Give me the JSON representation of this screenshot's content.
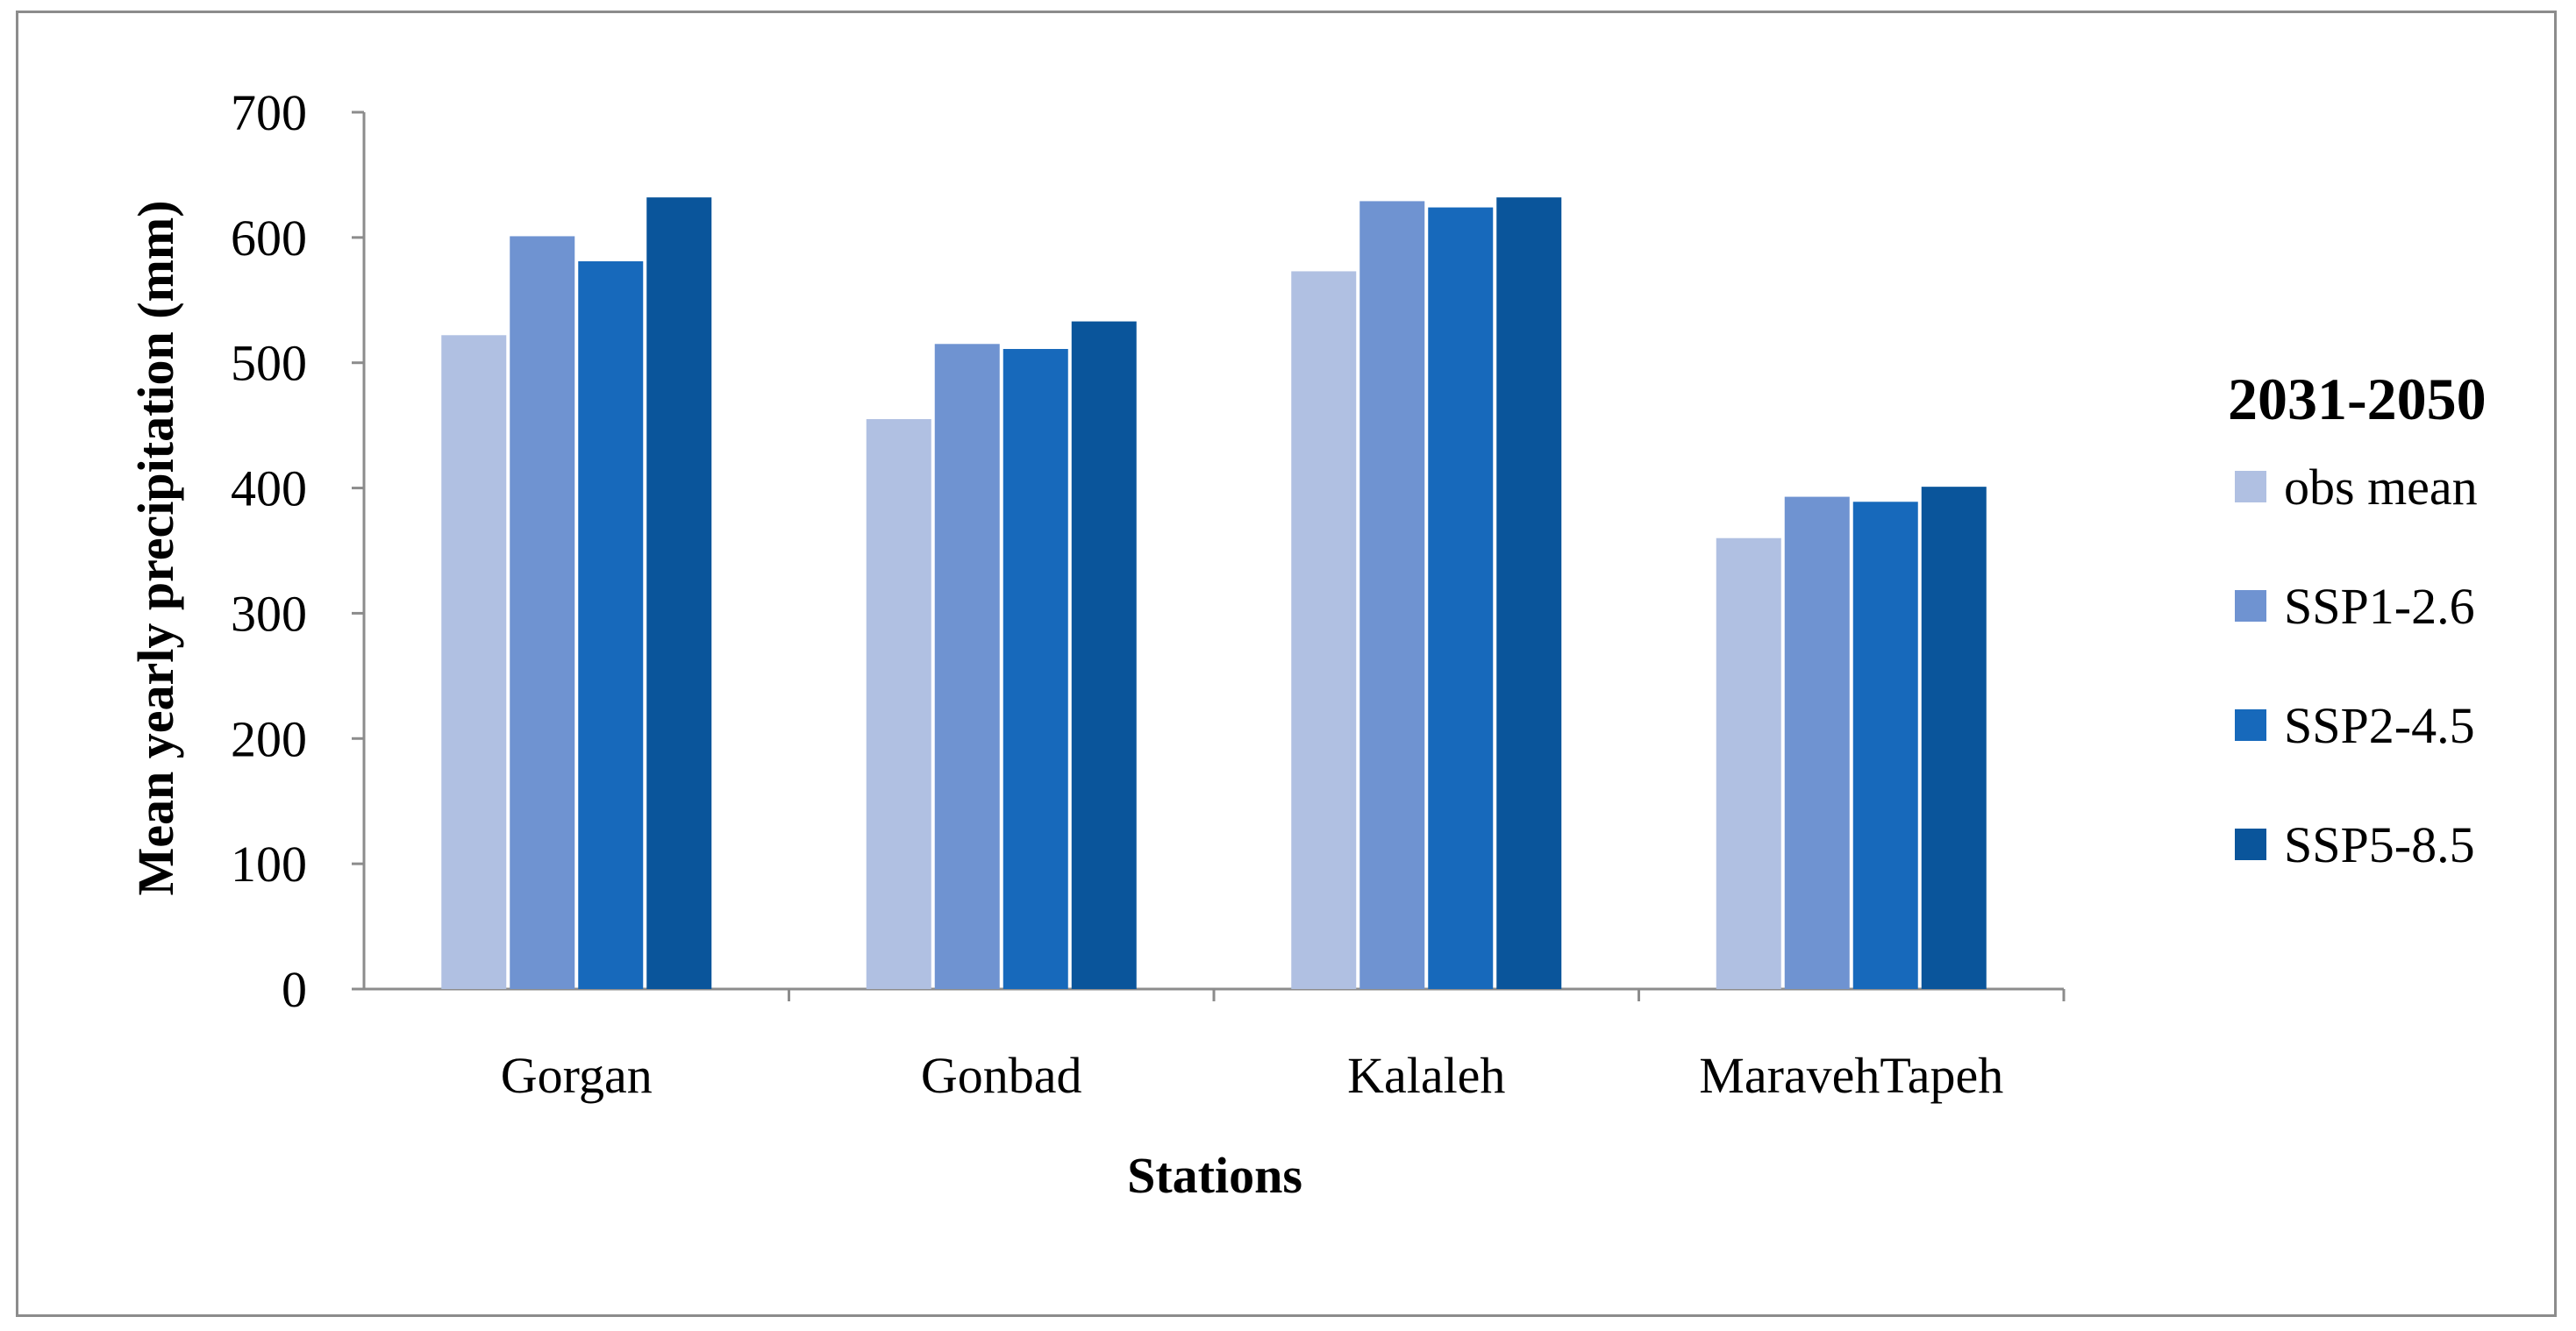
{
  "chart_data": {
    "type": "bar",
    "title": "",
    "xlabel": "Stations",
    "ylabel": "Mean yearly precipitation (mm)",
    "ylim": [
      0,
      700
    ],
    "yticks": [
      0,
      100,
      200,
      300,
      400,
      500,
      600,
      700
    ],
    "ytick_labels": [
      "0",
      "100",
      "200",
      "300",
      "400",
      "500",
      "600",
      "700"
    ],
    "grid": false,
    "legend_title": "2031-2050",
    "legend_position": "right",
    "categories": [
      "Gorgan",
      "Gonbad",
      "Kalaleh",
      "MaravehTapeh"
    ],
    "series": [
      {
        "name": "obs mean",
        "color": "#b0c0e2",
        "values": [
          522,
          455,
          573,
          360
        ]
      },
      {
        "name": "SSP1-2.6",
        "color": "#6f93d1",
        "values": [
          601,
          515,
          629,
          393
        ]
      },
      {
        "name": "SSP2-4.5",
        "color": "#1769bb",
        "values": [
          581,
          511,
          624,
          389
        ]
      },
      {
        "name": "SSP5-8.5",
        "color": "#0a559b",
        "values": [
          632,
          533,
          632,
          401
        ]
      }
    ]
  },
  "colors": {
    "axis": "#8c8c8c",
    "frame": "#8c8c8c",
    "text": "#000000"
  }
}
